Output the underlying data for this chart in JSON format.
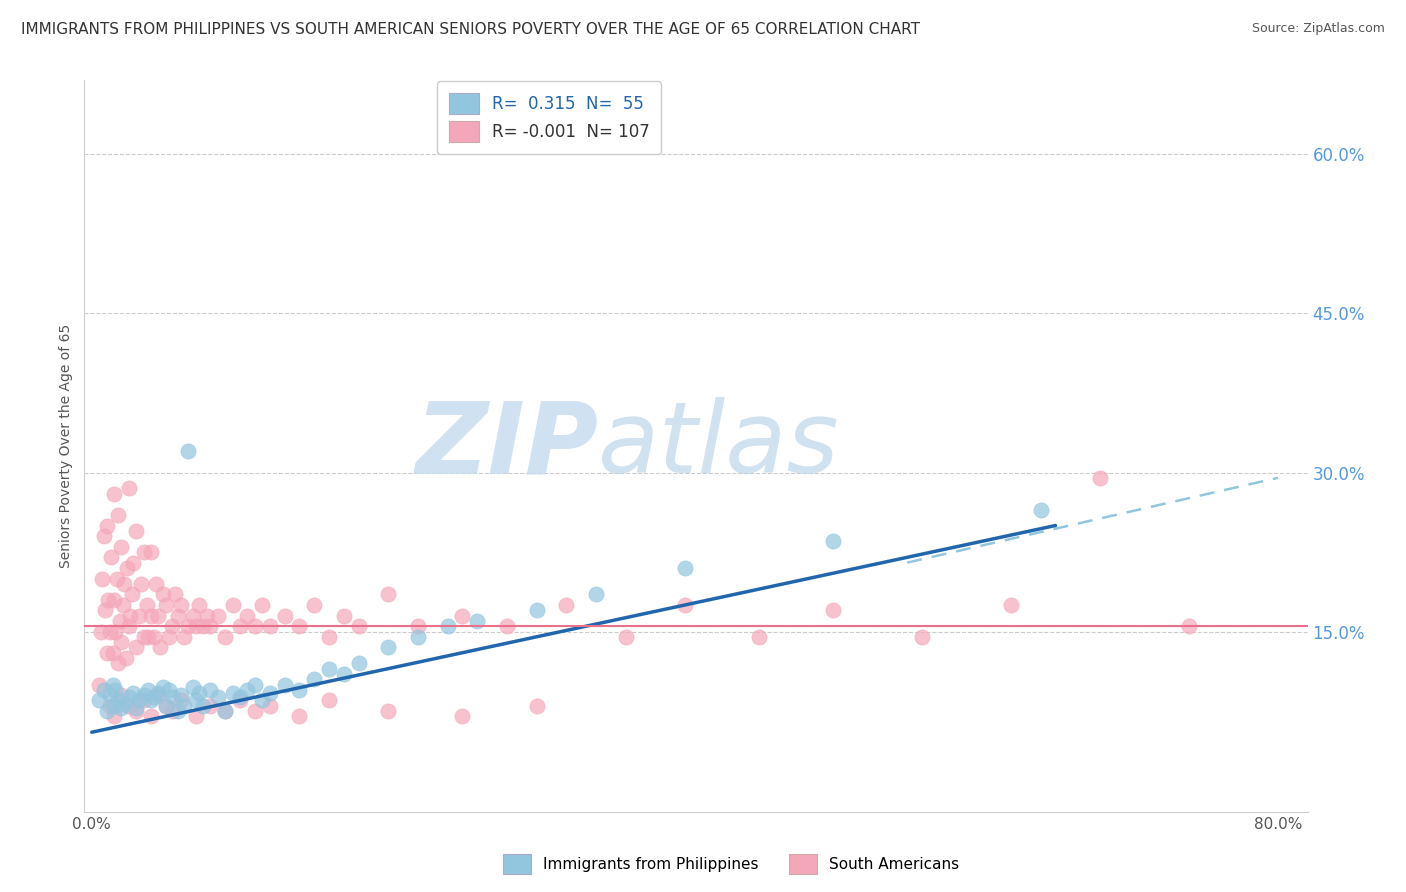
{
  "title": "IMMIGRANTS FROM PHILIPPINES VS SOUTH AMERICAN SENIORS POVERTY OVER THE AGE OF 65 CORRELATION CHART",
  "source": "Source: ZipAtlas.com",
  "ylabel_left": "Seniors Poverty Over the Age of 65",
  "xlim": [
    -0.005,
    0.82
  ],
  "ylim": [
    -0.02,
    0.67
  ],
  "legend_line1": "R=  0.315  N=  55",
  "legend_line2": "R= -0.001  N= 107",
  "blue_scatter_color": "#92c5de",
  "pink_scatter_color": "#f4a7b9",
  "trend_blue_solid_color": "#2166ac",
  "trend_pink_solid_color": "#e8708a",
  "trend_blue_dashed_color": "#92c5de",
  "watermark_zip_color": "#c8ddf0",
  "watermark_atlas_color": "#bdd5ea",
  "background_color": "#ffffff",
  "grid_color": "#cccccc",
  "right_axis_color": "#5599dd",
  "title_fontsize": 11,
  "source_fontsize": 9,
  "scatter_size": 120,
  "philippines_x": [
    0.005,
    0.008,
    0.01,
    0.012,
    0.014,
    0.015,
    0.016,
    0.018,
    0.02,
    0.022,
    0.025,
    0.028,
    0.03,
    0.032,
    0.035,
    0.038,
    0.04,
    0.042,
    0.045,
    0.048,
    0.05,
    0.052,
    0.055,
    0.058,
    0.06,
    0.062,
    0.065,
    0.068,
    0.07,
    0.072,
    0.075,
    0.08,
    0.085,
    0.09,
    0.095,
    0.1,
    0.105,
    0.11,
    0.115,
    0.12,
    0.13,
    0.14,
    0.15,
    0.16,
    0.17,
    0.18,
    0.2,
    0.22,
    0.24,
    0.26,
    0.3,
    0.34,
    0.4,
    0.5,
    0.64
  ],
  "philippines_y": [
    0.085,
    0.095,
    0.075,
    0.09,
    0.1,
    0.08,
    0.095,
    0.085,
    0.078,
    0.082,
    0.088,
    0.092,
    0.078,
    0.085,
    0.09,
    0.095,
    0.085,
    0.088,
    0.092,
    0.098,
    0.08,
    0.095,
    0.088,
    0.075,
    0.09,
    0.08,
    0.32,
    0.098,
    0.085,
    0.092,
    0.08,
    0.095,
    0.088,
    0.075,
    0.092,
    0.088,
    0.095,
    0.1,
    0.085,
    0.092,
    0.1,
    0.095,
    0.105,
    0.115,
    0.11,
    0.12,
    0.135,
    0.145,
    0.155,
    0.16,
    0.17,
    0.185,
    0.21,
    0.235,
    0.265
  ],
  "southam_x": [
    0.005,
    0.006,
    0.007,
    0.008,
    0.009,
    0.01,
    0.01,
    0.011,
    0.012,
    0.013,
    0.014,
    0.015,
    0.015,
    0.016,
    0.017,
    0.018,
    0.018,
    0.019,
    0.02,
    0.02,
    0.021,
    0.022,
    0.023,
    0.024,
    0.025,
    0.025,
    0.026,
    0.027,
    0.028,
    0.03,
    0.03,
    0.032,
    0.033,
    0.035,
    0.035,
    0.037,
    0.038,
    0.04,
    0.04,
    0.042,
    0.043,
    0.045,
    0.046,
    0.048,
    0.05,
    0.052,
    0.054,
    0.056,
    0.058,
    0.06,
    0.062,
    0.065,
    0.068,
    0.07,
    0.072,
    0.075,
    0.078,
    0.08,
    0.085,
    0.09,
    0.095,
    0.1,
    0.105,
    0.11,
    0.115,
    0.12,
    0.13,
    0.14,
    0.15,
    0.16,
    0.17,
    0.18,
    0.2,
    0.22,
    0.25,
    0.28,
    0.32,
    0.36,
    0.4,
    0.45,
    0.5,
    0.56,
    0.62,
    0.68,
    0.74,
    0.012,
    0.015,
    0.02,
    0.025,
    0.03,
    0.035,
    0.04,
    0.045,
    0.05,
    0.055,
    0.06,
    0.07,
    0.08,
    0.09,
    0.1,
    0.11,
    0.12,
    0.14,
    0.16,
    0.2,
    0.25,
    0.3
  ],
  "southam_y": [
    0.1,
    0.15,
    0.2,
    0.24,
    0.17,
    0.13,
    0.25,
    0.18,
    0.15,
    0.22,
    0.13,
    0.18,
    0.28,
    0.15,
    0.2,
    0.12,
    0.26,
    0.16,
    0.14,
    0.23,
    0.175,
    0.195,
    0.125,
    0.21,
    0.155,
    0.285,
    0.165,
    0.185,
    0.215,
    0.135,
    0.245,
    0.165,
    0.195,
    0.145,
    0.225,
    0.175,
    0.145,
    0.165,
    0.225,
    0.145,
    0.195,
    0.165,
    0.135,
    0.185,
    0.175,
    0.145,
    0.155,
    0.185,
    0.165,
    0.175,
    0.145,
    0.155,
    0.165,
    0.155,
    0.175,
    0.155,
    0.165,
    0.155,
    0.165,
    0.145,
    0.175,
    0.155,
    0.165,
    0.155,
    0.175,
    0.155,
    0.165,
    0.155,
    0.175,
    0.145,
    0.165,
    0.155,
    0.185,
    0.155,
    0.165,
    0.155,
    0.175,
    0.145,
    0.175,
    0.145,
    0.17,
    0.145,
    0.175,
    0.295,
    0.155,
    0.08,
    0.07,
    0.09,
    0.08,
    0.075,
    0.085,
    0.07,
    0.09,
    0.08,
    0.075,
    0.085,
    0.07,
    0.08,
    0.075,
    0.085,
    0.075,
    0.08,
    0.07,
    0.085,
    0.075,
    0.07,
    0.08
  ],
  "trend_blue_x_start": 0.0,
  "trend_blue_x_end": 0.65,
  "trend_blue_y_start": 0.055,
  "trend_blue_y_end": 0.25,
  "trend_dashed_x_start": 0.55,
  "trend_dashed_x_end": 0.8,
  "trend_dashed_y_start": 0.215,
  "trend_dashed_y_end": 0.295,
  "trend_pink_y": 0.155
}
